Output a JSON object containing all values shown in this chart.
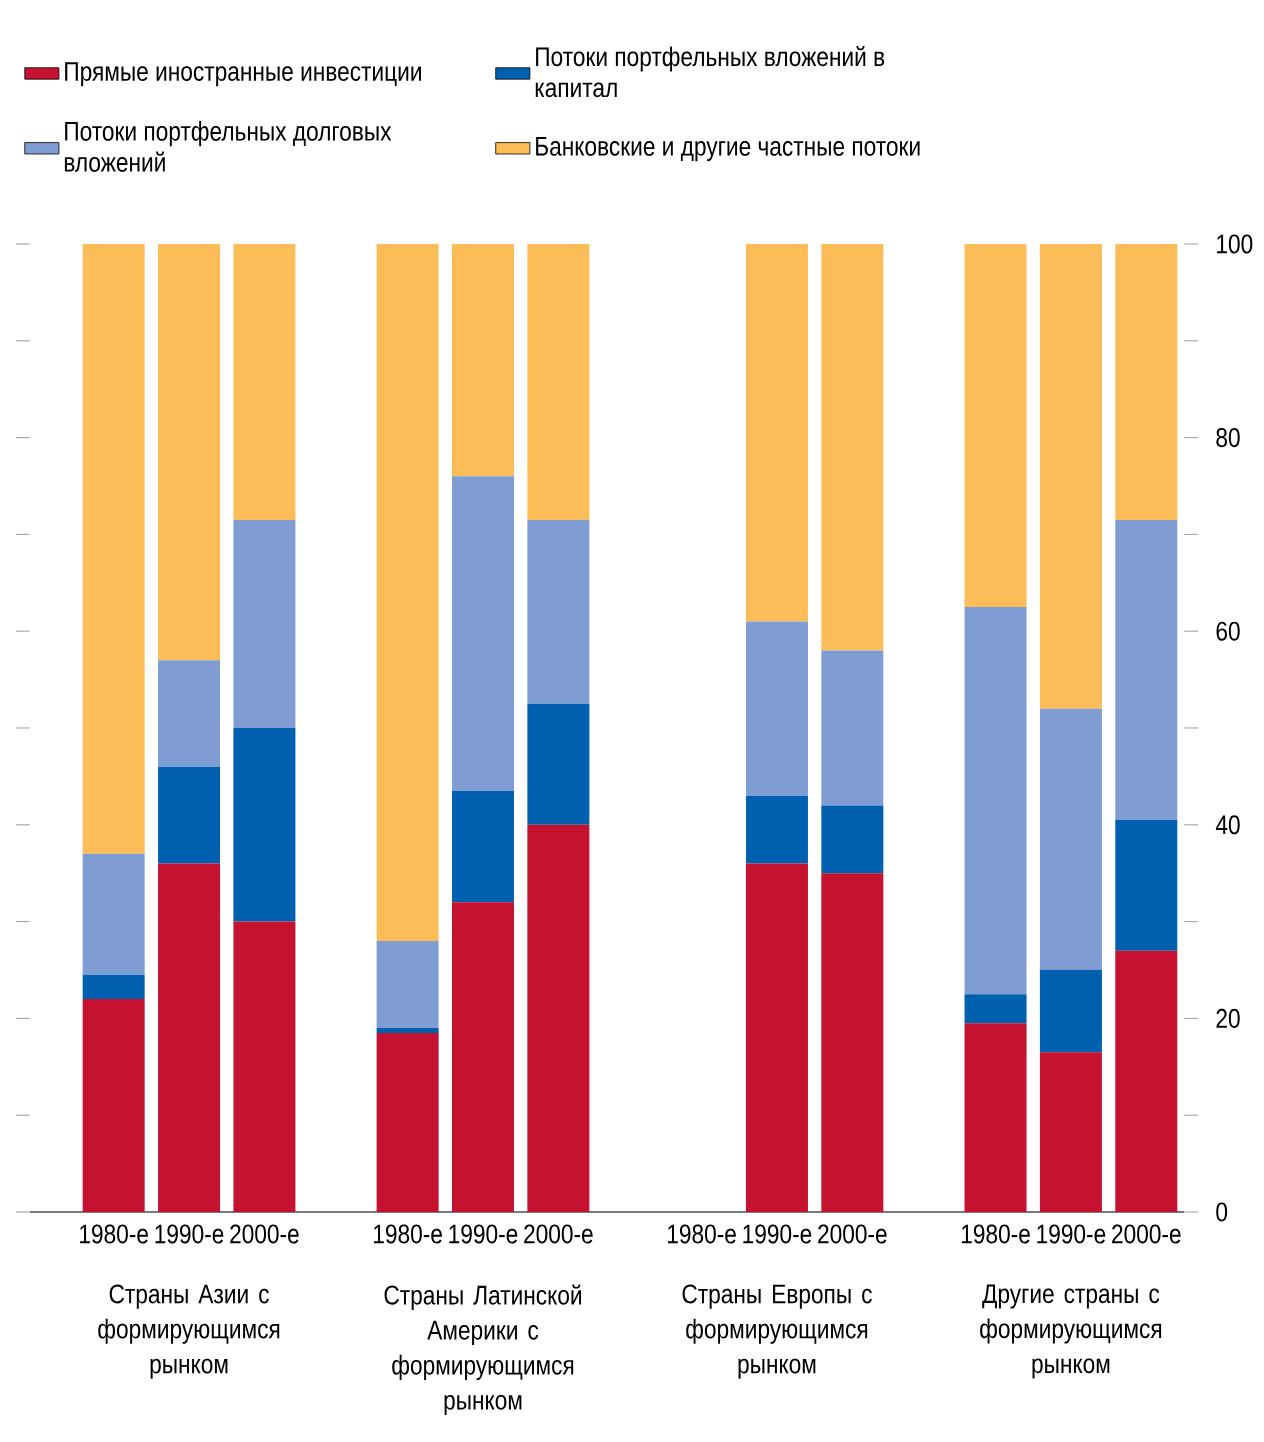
{
  "chart_data": {
    "type": "bar",
    "stacked": true,
    "legend": "top",
    "categories": [
      "1980-е",
      "1990-е",
      "2000-е",
      "1980-е",
      "1990-е",
      "2000-е",
      "1980-е",
      "1990-е",
      "2000-е",
      "1980-е",
      "1990-е",
      "2000-е"
    ],
    "series": [
      {
        "name": "Прямые иностранные инвестиции",
        "color": "#c41230",
        "values": [
          22,
          36,
          30,
          18.5,
          32,
          40,
          null,
          36,
          35,
          19.5,
          16.5,
          27
        ]
      },
      {
        "name": "Потоки портфельных вложений в капитал",
        "color": "#0060b0",
        "values": [
          2.5,
          10,
          20,
          0.5,
          11.5,
          12.5,
          null,
          7,
          7,
          3,
          8.5,
          13.5
        ]
      },
      {
        "name": "Потоки портфельных долговых вложений",
        "color": "#7f9dd2",
        "values": [
          12.5,
          11,
          21.5,
          9,
          32.5,
          19,
          null,
          18,
          16,
          40,
          27,
          31
        ]
      },
      {
        "name": "Банковские и другие частные потоки",
        "color": "#fcbd58",
        "values": [
          63,
          43,
          28.5,
          72,
          24,
          28.5,
          null,
          39,
          42,
          37.5,
          48,
          28.5
        ]
      }
    ],
    "ylim": [
      0,
      100
    ],
    "yticks": [
      0,
      {
        "value": 10,
        "label": null
      },
      20,
      {
        "value": 30,
        "label": null
      },
      40,
      {
        "value": 50,
        "label": null
      },
      60,
      {
        "value": 70,
        "label": null
      },
      80,
      {
        "value": 90,
        "label": null
      },
      100
    ],
    "annotations": [
      "Страны Азии с формирующимся рынком",
      "Страны Латинской Америки с формирующимся рынком",
      "Страны Европы с формирующимся рынком",
      "Другие страны с формирующимся рынком"
    ]
  }
}
